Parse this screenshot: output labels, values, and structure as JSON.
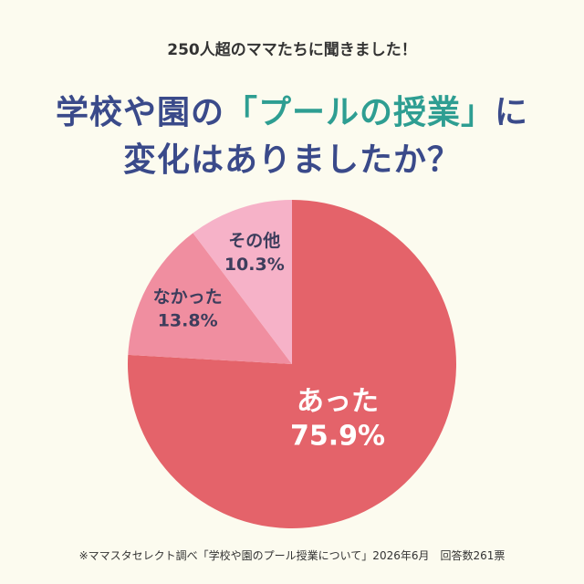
{
  "header": {
    "subtitle": "250人超のママたちに聞きました！",
    "title_line1_pre": "学校や園の",
    "title_line1_highlight": "「プールの授業」",
    "title_line1_post": "に",
    "title_line2": "変化はありましたか？"
  },
  "colors": {
    "background": "#fcfbef",
    "title": "#3a4a8a",
    "highlight": "#2e9e92"
  },
  "chart_data": {
    "type": "pie",
    "slices": [
      {
        "label": "あった",
        "value": 75.9,
        "value_label": "75.9%",
        "color": "#e4636a",
        "text_color": "#ffffff"
      },
      {
        "label": "なかった",
        "value": 13.8,
        "value_label": "13.8%",
        "color": "#f08ea0",
        "text_color": "#3d3d5c"
      },
      {
        "label": "その他",
        "value": 10.3,
        "value_label": "10.3%",
        "color": "#f6b2c8",
        "text_color": "#3d3d5c"
      }
    ],
    "start": "top",
    "direction": "clockwise"
  },
  "footer": {
    "note": "※ママスタセレクト調べ「学校や園のプール授業について」2026年6月　回答数261票"
  }
}
